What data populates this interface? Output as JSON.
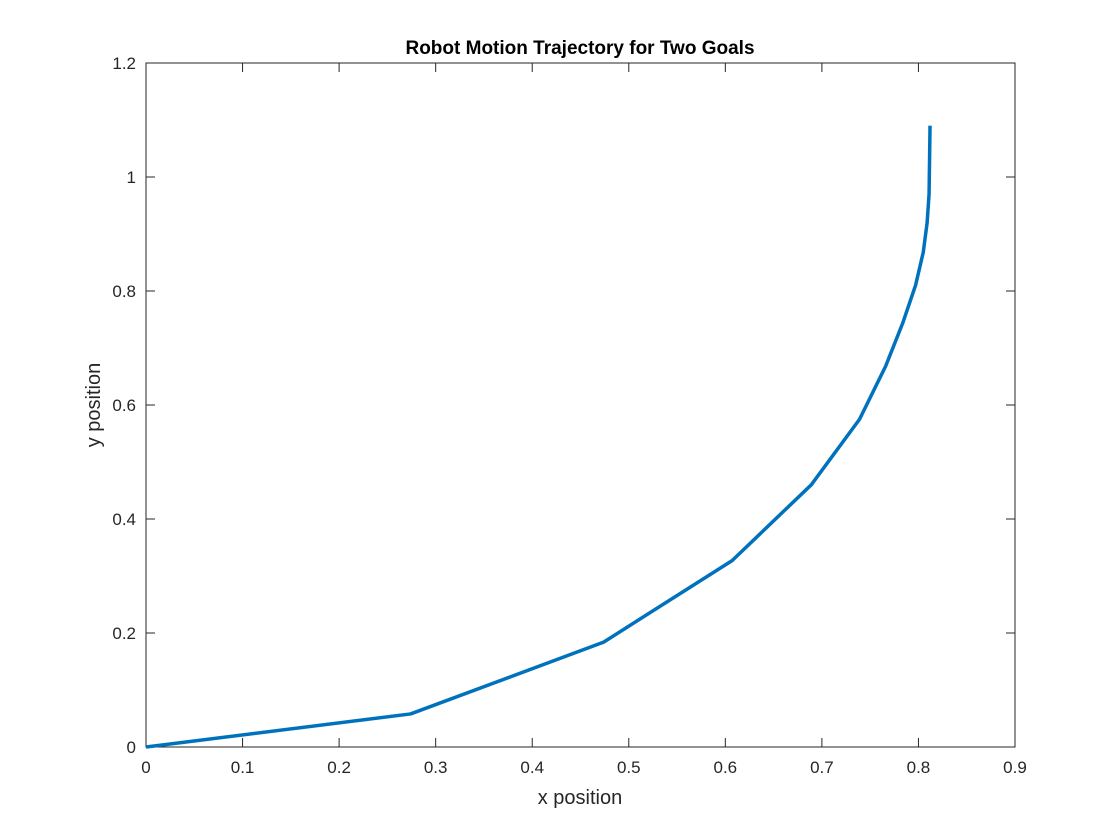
{
  "chart_data": {
    "type": "line",
    "title": "Robot Motion Trajectory for Two Goals",
    "xlabel": "x position",
    "ylabel": "y position",
    "xlim": [
      0,
      0.9
    ],
    "ylim": [
      0,
      1.2
    ],
    "xticks": [
      "0",
      "0.1",
      "0.2",
      "0.3",
      "0.4",
      "0.5",
      "0.6",
      "0.7",
      "0.8",
      "0.9"
    ],
    "yticks": [
      "0",
      "0.2",
      "0.4",
      "0.6",
      "0.8",
      "1",
      "1.2"
    ],
    "grid": false,
    "series": [
      {
        "color": "#0072BD",
        "x": [
          0,
          0.274,
          0.474,
          0.607,
          0.689,
          0.739,
          0.766,
          0.784,
          0.797,
          0.805,
          0.809,
          0.811,
          0.8115,
          0.812
        ],
        "y": [
          0,
          0.058,
          0.184,
          0.327,
          0.46,
          0.575,
          0.668,
          0.745,
          0.81,
          0.868,
          0.92,
          0.97,
          1.03,
          1.09
        ]
      }
    ]
  }
}
